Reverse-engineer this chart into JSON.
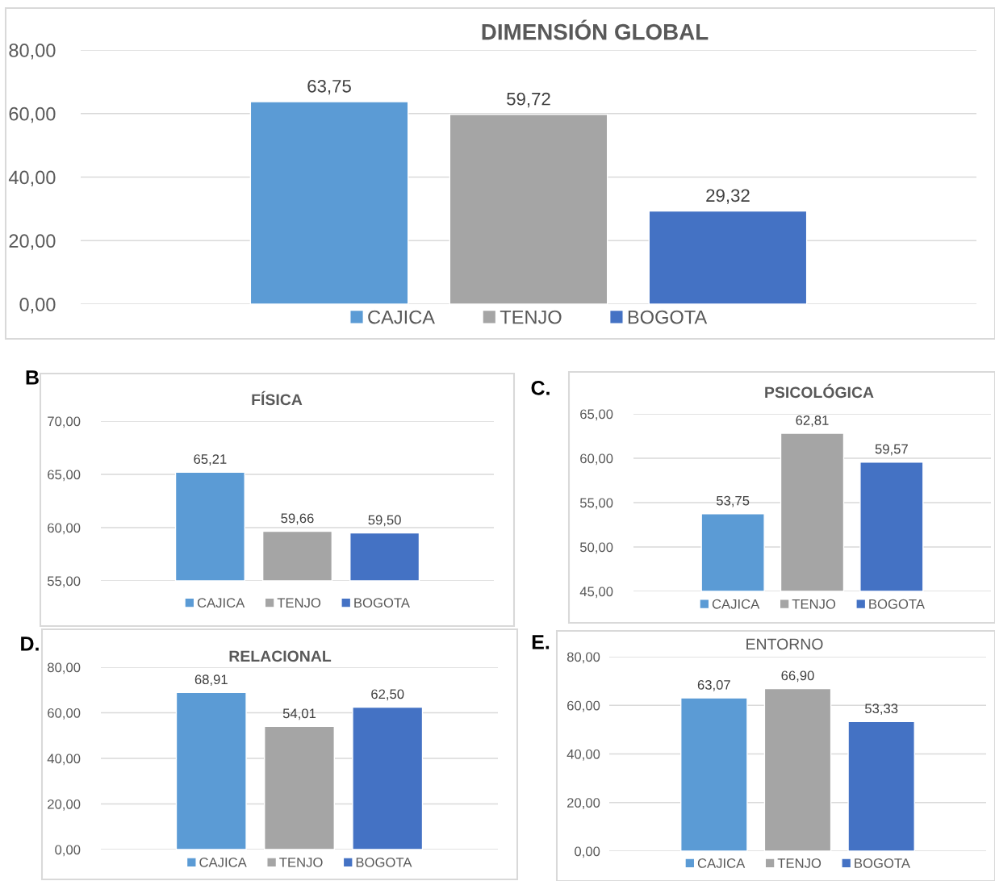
{
  "chart_data": [
    {
      "type": "bar",
      "title": "DIMENSIÓN GLOBAL",
      "categories": [
        null
      ],
      "legend": "bottom",
      "grid": "y",
      "ylim": [
        0,
        80
      ],
      "yticks": [
        {
          "value": 0,
          "label": "0,00"
        },
        {
          "value": 20,
          "label": "20,00"
        },
        {
          "value": 40,
          "label": "40,00"
        },
        {
          "value": 60,
          "label": "60,00"
        },
        {
          "value": 80,
          "label": "80,00"
        }
      ],
      "series": [
        {
          "name": "CAJICA",
          "color": "#5b9bd5",
          "values": [
            63.75
          ],
          "value_labels": [
            "63,75"
          ]
        },
        {
          "name": "TENJO",
          "color": "#a5a5a5",
          "values": [
            59.72
          ],
          "value_labels": [
            "59,72"
          ]
        },
        {
          "name": "BOGOTA",
          "color": "#4472c4",
          "values": [
            29.32
          ],
          "value_labels": [
            "29,32"
          ]
        }
      ]
    },
    {
      "type": "bar",
      "title": "FÍSICA",
      "categories": [
        null
      ],
      "legend": "bottom",
      "grid": "y",
      "annotations": [
        "B"
      ],
      "ylim": [
        55,
        70
      ],
      "yticks": [
        {
          "value": 55,
          "label": "55,00"
        },
        {
          "value": 60,
          "label": "60,00"
        },
        {
          "value": 65,
          "label": "65,00"
        },
        {
          "value": 70,
          "label": "70,00"
        }
      ],
      "series": [
        {
          "name": "CAJICA",
          "color": "#5b9bd5",
          "values": [
            65.21
          ],
          "value_labels": [
            "65,21"
          ]
        },
        {
          "name": "TENJO",
          "color": "#a5a5a5",
          "values": [
            59.66
          ],
          "value_labels": [
            "59,66"
          ]
        },
        {
          "name": "BOGOTA",
          "color": "#4472c4",
          "values": [
            59.5
          ],
          "value_labels": [
            "59,50"
          ]
        }
      ]
    },
    {
      "type": "bar",
      "title": "PSICOLÓGICA",
      "categories": [
        null
      ],
      "legend": "bottom",
      "grid": "y",
      "annotations": [
        "C."
      ],
      "ylim": [
        45,
        65
      ],
      "yticks": [
        {
          "value": 45,
          "label": "45,00"
        },
        {
          "value": 50,
          "label": "50,00"
        },
        {
          "value": 55,
          "label": "55,00"
        },
        {
          "value": 60,
          "label": "60,00"
        },
        {
          "value": 65,
          "label": "65,00"
        }
      ],
      "series": [
        {
          "name": "CAJICA",
          "color": "#5b9bd5",
          "values": [
            53.75
          ],
          "value_labels": [
            "53,75"
          ]
        },
        {
          "name": "TENJO",
          "color": "#a5a5a5",
          "values": [
            62.81
          ],
          "value_labels": [
            "62,81"
          ]
        },
        {
          "name": "BOGOTA",
          "color": "#4472c4",
          "values": [
            59.57
          ],
          "value_labels": [
            "59,57"
          ]
        }
      ]
    },
    {
      "type": "bar",
      "title": "RELACIONAL",
      "categories": [
        null
      ],
      "legend": "bottom",
      "grid": "y",
      "annotations": [
        "D."
      ],
      "ylim": [
        0,
        80
      ],
      "yticks": [
        {
          "value": 0,
          "label": "0,00"
        },
        {
          "value": 20,
          "label": "20,00"
        },
        {
          "value": 40,
          "label": "40,00"
        },
        {
          "value": 60,
          "label": "60,00"
        },
        {
          "value": 80,
          "label": "80,00"
        }
      ],
      "series": [
        {
          "name": "CAJICA",
          "color": "#5b9bd5",
          "values": [
            68.91
          ],
          "value_labels": [
            "68,91"
          ]
        },
        {
          "name": "TENJO",
          "color": "#a5a5a5",
          "values": [
            54.01
          ],
          "value_labels": [
            "54,01"
          ]
        },
        {
          "name": "BOGOTA",
          "color": "#4472c4",
          "values": [
            62.5
          ],
          "value_labels": [
            "62,50"
          ]
        }
      ]
    },
    {
      "type": "bar",
      "title": "ENTORNO",
      "categories": [
        null
      ],
      "legend": "bottom",
      "grid": "y",
      "annotations": [
        "E."
      ],
      "ylim": [
        0,
        80
      ],
      "yticks": [
        {
          "value": 0,
          "label": "0,00"
        },
        {
          "value": 20,
          "label": "20,00"
        },
        {
          "value": 40,
          "label": "40,00"
        },
        {
          "value": 60,
          "label": "60,00"
        },
        {
          "value": 80,
          "label": "80,00"
        }
      ],
      "series": [
        {
          "name": "CAJICA",
          "color": "#5b9bd5",
          "values": [
            63.07
          ],
          "value_labels": [
            "63,07"
          ]
        },
        {
          "name": "TENJO",
          "color": "#a5a5a5",
          "values": [
            66.9
          ],
          "value_labels": [
            "66,90"
          ]
        },
        {
          "name": "BOGOTA",
          "color": "#4472c4",
          "values": [
            53.33
          ],
          "value_labels": [
            "53,33"
          ]
        }
      ]
    }
  ]
}
